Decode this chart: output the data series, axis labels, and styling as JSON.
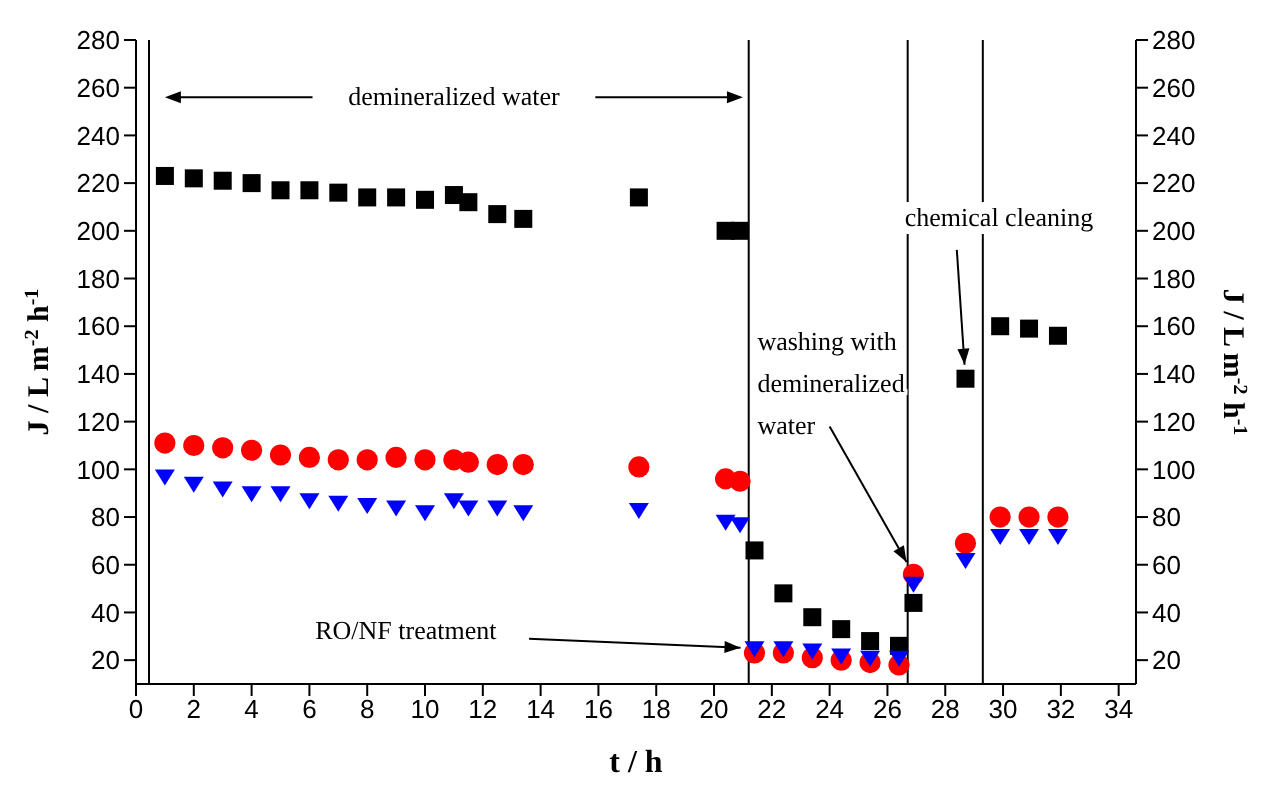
{
  "chart_data": {
    "type": "scatter",
    "xlabel": "t / h",
    "ylabel": "J / L m$^{-2}$ h$^{-1}$",
    "y2label": "J / L m$^{-2}$ h$^{-1}$",
    "x": [
      1,
      2,
      3,
      4,
      5,
      6,
      7,
      8,
      9,
      10,
      11,
      11.5,
      12.5,
      13.4,
      17.4,
      20.4,
      20.9,
      21.4,
      22.4,
      23.4,
      24.4,
      25.4,
      26.4,
      26.9,
      28.7,
      29.9,
      30.9,
      31.9
    ],
    "series": [
      {
        "color": "#000000",
        "marker": "square",
        "values": [
          223,
          222,
          221,
          220,
          217,
          217,
          216,
          214,
          214,
          213,
          215,
          212,
          207,
          205,
          214,
          200,
          200,
          66,
          48,
          38,
          33,
          28,
          26,
          44,
          138,
          160,
          159,
          156
        ]
      },
      {
        "color": "#ff0000",
        "marker": "circle",
        "values": [
          111,
          110,
          109,
          108,
          106,
          105,
          104,
          104,
          105,
          104,
          104,
          103,
          102,
          102,
          101,
          96,
          95,
          23,
          23,
          21,
          20,
          19,
          18,
          56,
          69,
          80,
          80,
          80
        ]
      },
      {
        "color": "#0000ff",
        "marker": "triangle",
        "values": [
          97,
          94,
          92,
          90,
          90,
          87,
          86,
          85,
          84,
          82,
          87,
          84,
          84,
          82,
          83,
          78,
          77,
          25,
          25,
          24,
          22,
          21,
          21,
          52,
          62,
          72,
          72,
          72
        ]
      }
    ],
    "xlim": [
      0,
      34.6
    ],
    "xticks": [
      0,
      2,
      4,
      6,
      8,
      10,
      12,
      14,
      16,
      18,
      20,
      22,
      24,
      26,
      28,
      30,
      32,
      34
    ],
    "ylim": [
      10,
      280
    ],
    "yticks": [
      20,
      40,
      60,
      80,
      100,
      120,
      140,
      160,
      180,
      200,
      220,
      240,
      260,
      280
    ],
    "y2lim": [
      10,
      280
    ],
    "y2ticks": [
      20,
      40,
      60,
      80,
      100,
      120,
      140,
      160,
      180,
      200,
      220,
      240,
      260,
      280
    ],
    "ref_lines": [
      {
        "axis": "x",
        "value": 0.45,
        "color": "#000000"
      },
      {
        "axis": "x",
        "value": 21.2,
        "color": "#000000"
      },
      {
        "axis": "x",
        "value": 26.7,
        "color": "#000000"
      },
      {
        "axis": "x",
        "value": 29.3,
        "color": "#000000"
      }
    ],
    "annotations": [
      "demineralized water",
      {
        "text": "RO/NF treatment",
        "x": 21.4,
        "y": 25
      },
      {
        "text": "washing with demineralized water",
        "x": 26.9,
        "y": 56
      },
      {
        "text": "chemical cleaning",
        "x": 28.7,
        "y": 138
      }
    ],
    "grid": false
  }
}
